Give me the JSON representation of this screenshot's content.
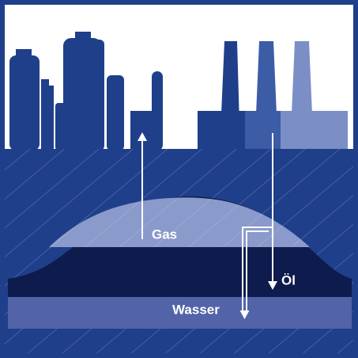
{
  "labels": {
    "gas": "Gas",
    "oil": "Öl",
    "water": "Wasser"
  }
}
